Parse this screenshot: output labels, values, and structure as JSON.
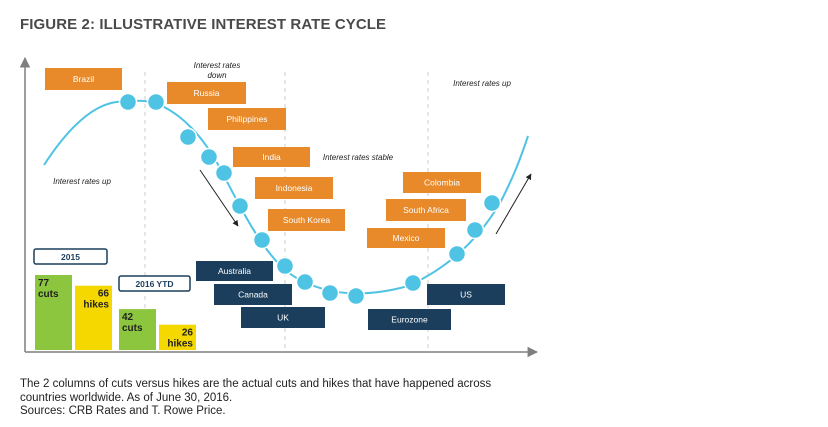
{
  "title": "FIGURE 2: ILLUSTRATIVE INTEREST RATE CYCLE",
  "colors": {
    "emerging": "#E8892A",
    "developed": "#1B3E5C",
    "dot": "#4FC3E3",
    "curve": "#4FC3E3",
    "cuts": "#8CC63F",
    "hikes": "#F5D800",
    "axis": "#7F7F7F",
    "gridline": "#CCCCCC",
    "text": "#222222"
  },
  "chart_data": {
    "type": "bar",
    "phase_annotations": [
      {
        "id": "up-left",
        "text": "Interest rates up"
      },
      {
        "id": "down",
        "lines": [
          "Interest rates",
          "down"
        ]
      },
      {
        "id": "stable",
        "text": "Interest rates stable"
      },
      {
        "id": "up-right",
        "text": "Interest rates up"
      }
    ],
    "country_labels": [
      {
        "name": "Brazil",
        "group": "emerging"
      },
      {
        "name": "Russia",
        "group": "emerging"
      },
      {
        "name": "Philippines",
        "group": "emerging"
      },
      {
        "name": "India",
        "group": "emerging"
      },
      {
        "name": "Indonesia",
        "group": "emerging"
      },
      {
        "name": "South Korea",
        "group": "emerging"
      },
      {
        "name": "Australia",
        "group": "developed"
      },
      {
        "name": "Canada",
        "group": "developed"
      },
      {
        "name": "UK",
        "group": "developed"
      },
      {
        "name": "Eurozone",
        "group": "developed"
      },
      {
        "name": "US",
        "group": "developed"
      },
      {
        "name": "Mexico",
        "group": "emerging"
      },
      {
        "name": "South Africa",
        "group": "emerging"
      },
      {
        "name": "Colombia",
        "group": "emerging"
      }
    ],
    "bar_groups": [
      {
        "label": "2015",
        "bars": [
          {
            "value": 77,
            "kind": "cuts",
            "label": "cuts"
          },
          {
            "value": 66,
            "kind": "hikes",
            "label": "hikes"
          }
        ]
      },
      {
        "label": "2016 YTD",
        "bars": [
          {
            "value": 42,
            "kind": "cuts",
            "label": "cuts"
          },
          {
            "value": 26,
            "kind": "hikes",
            "label": "hikes"
          }
        ]
      }
    ]
  },
  "notes": {
    "line1": "The 2 columns of cuts versus hikes are the actual cuts and hikes that have happened across",
    "line2": "countries worldwide. As of June 30, 2016.",
    "line3": "Sources: CRB Rates and T. Rowe Price."
  }
}
